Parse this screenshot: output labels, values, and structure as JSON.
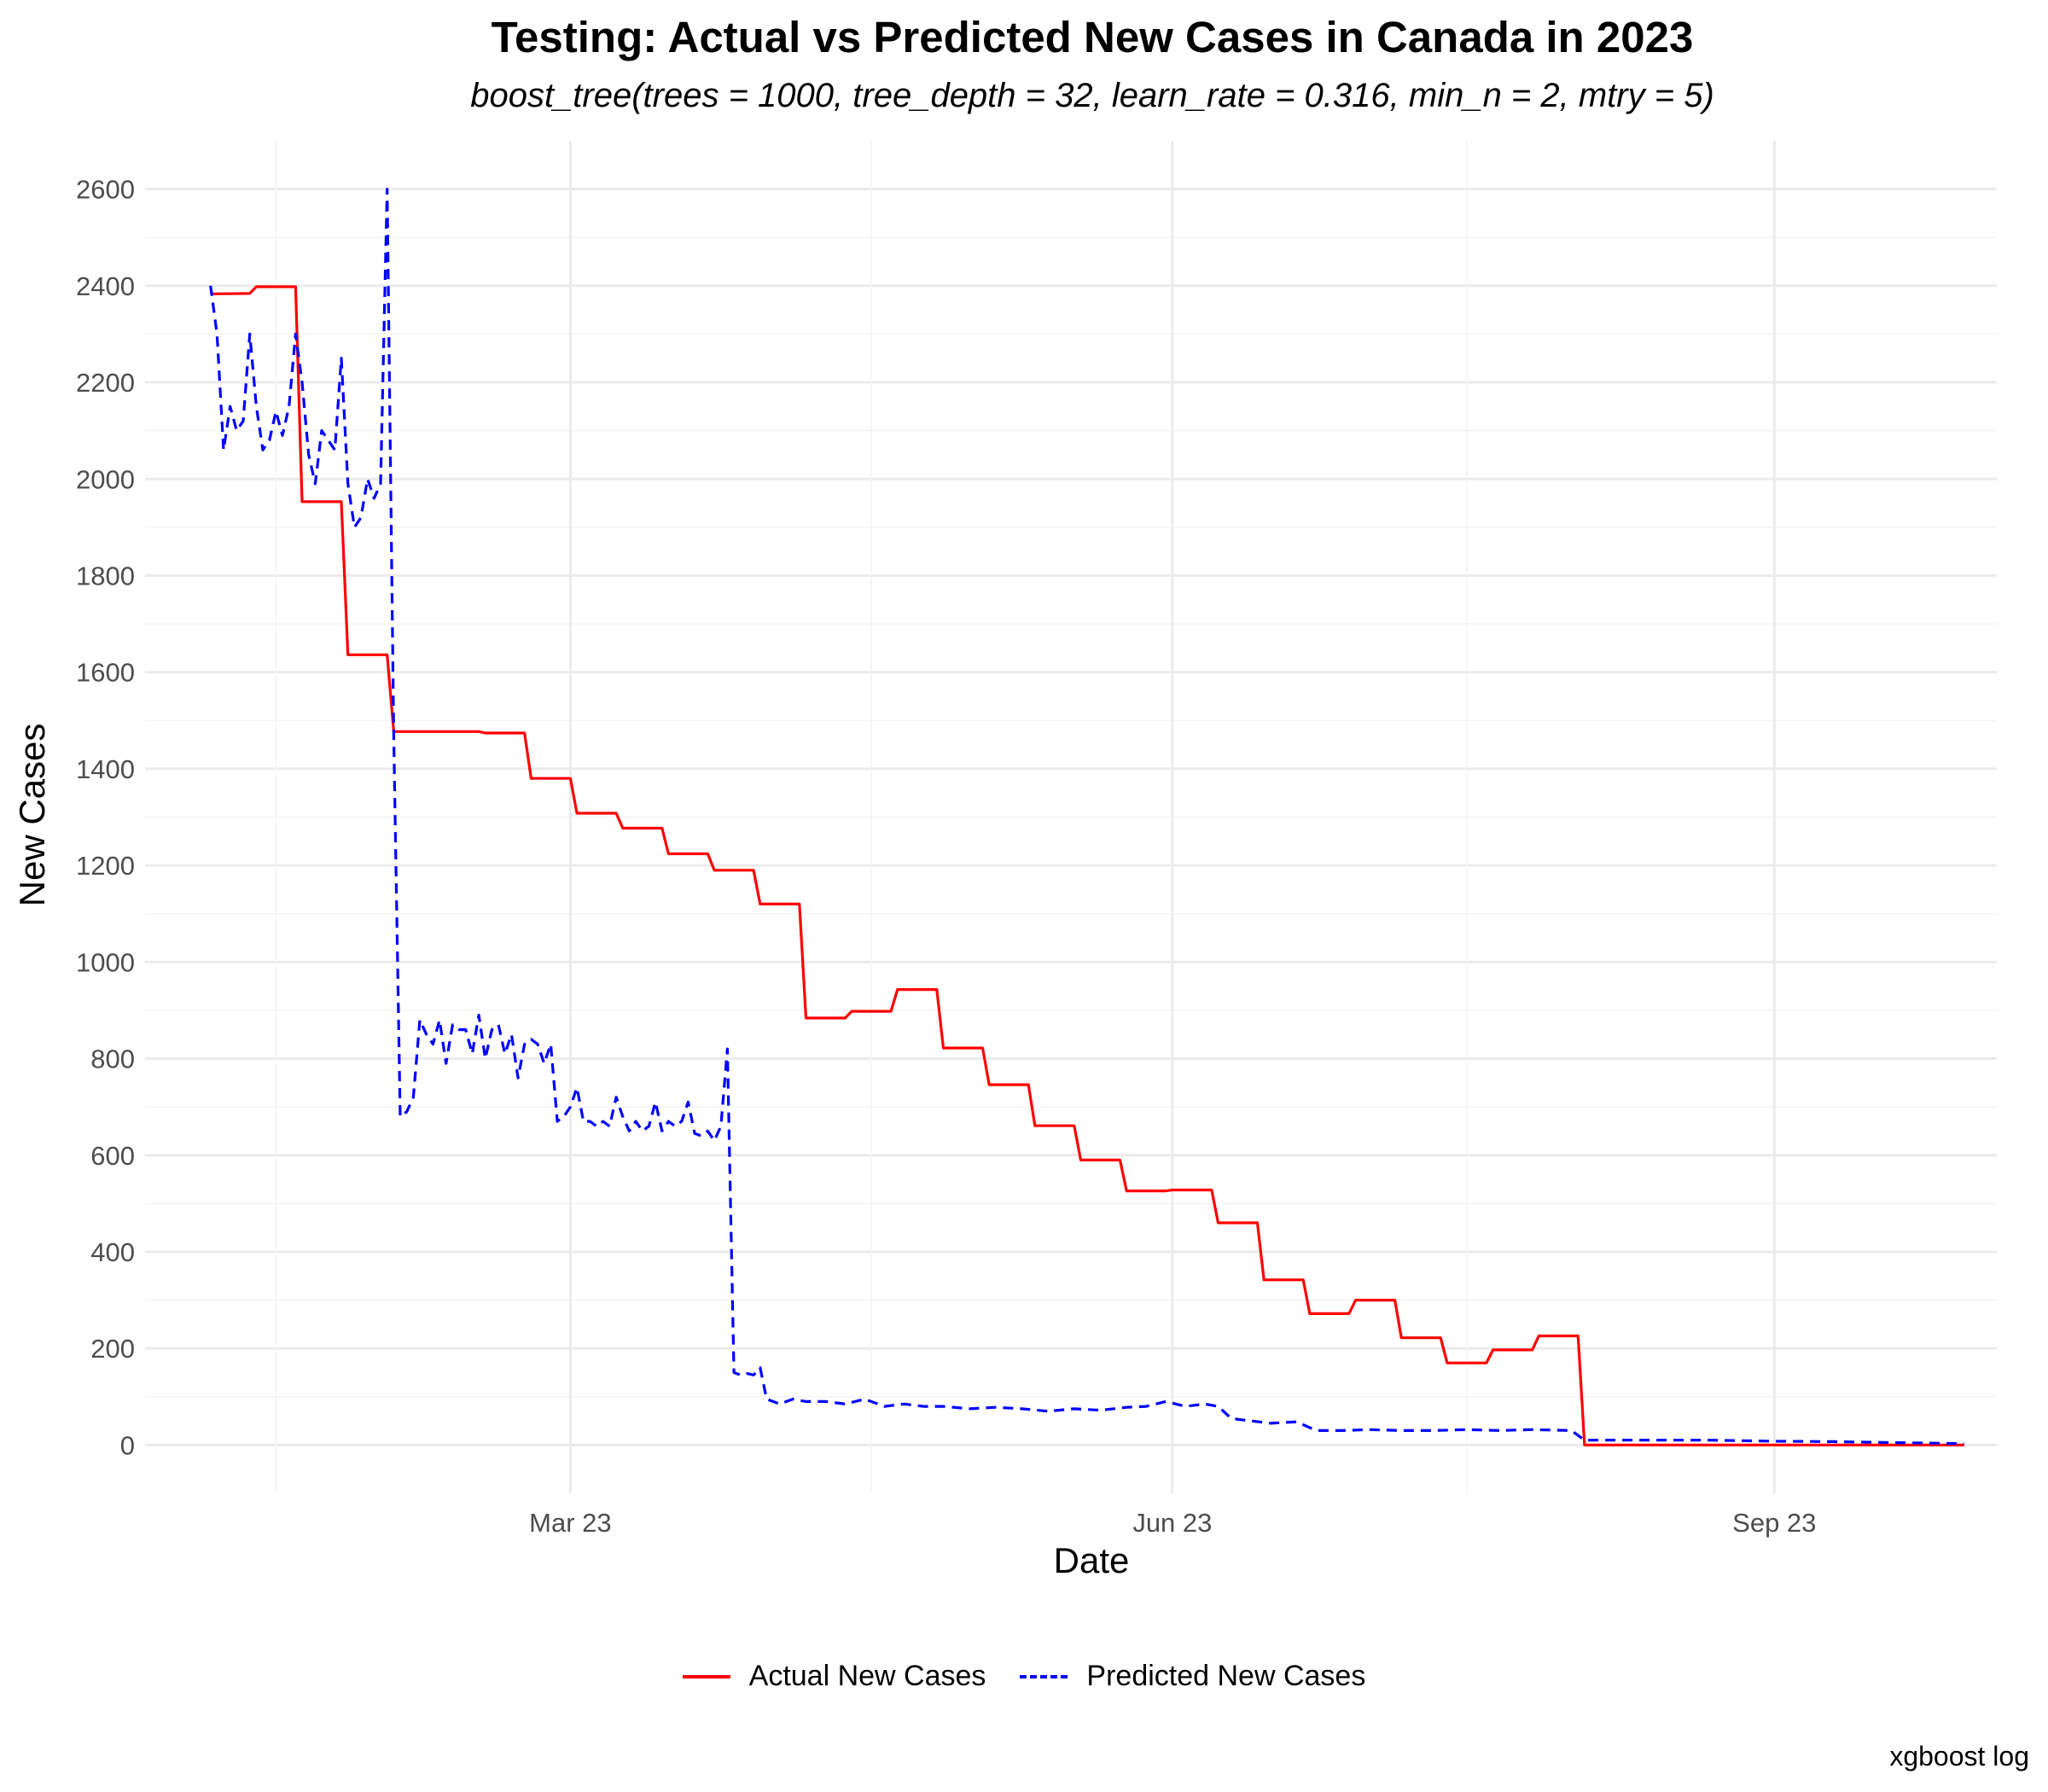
{
  "chart_data": {
    "type": "line",
    "title": "Testing: Actual vs Predicted New Cases in Canada in 2023",
    "subtitle": "boost_tree(trees = 1000, tree_depth = 32, learn_rate = 0.316, min_n = 2, mtry = 5)",
    "xlabel": "Date",
    "ylabel": "New Cases",
    "caption": "xgboost log",
    "x_ticks": [
      "Mar 23",
      "Jun 23",
      "Sep 23"
    ],
    "y_ticks": [
      0,
      200,
      400,
      600,
      800,
      1000,
      1200,
      1400,
      1600,
      1800,
      2000,
      2200,
      2400,
      2600
    ],
    "ylim": [
      -100,
      2700
    ],
    "xlim": [
      "2022-12-26",
      "2023-10-05"
    ],
    "grid": true,
    "legend_position": "bottom",
    "series": [
      {
        "name": "Actual New Cases",
        "color": "#ff0000",
        "dash": "solid",
        "points": [
          [
            "2023-01-05",
            2383
          ],
          [
            "2023-01-11",
            2384
          ],
          [
            "2023-01-12",
            2398
          ],
          [
            "2023-01-18",
            2398
          ],
          [
            "2023-01-19",
            1953
          ],
          [
            "2023-01-25",
            1953
          ],
          [
            "2023-01-26",
            1636
          ],
          [
            "2023-02-01",
            1636
          ],
          [
            "2023-02-02",
            1477
          ],
          [
            "2023-02-15",
            1477
          ],
          [
            "2023-02-16",
            1474
          ],
          [
            "2023-02-22",
            1474
          ],
          [
            "2023-02-23",
            1380
          ],
          [
            "2023-03-01",
            1380
          ],
          [
            "2023-03-02",
            1308
          ],
          [
            "2023-03-08",
            1308
          ],
          [
            "2023-03-09",
            1277
          ],
          [
            "2023-03-15",
            1277
          ],
          [
            "2023-03-16",
            1224
          ],
          [
            "2023-03-22",
            1224
          ],
          [
            "2023-03-23",
            1190
          ],
          [
            "2023-03-29",
            1190
          ],
          [
            "2023-03-30",
            1120
          ],
          [
            "2023-04-05",
            1120
          ],
          [
            "2023-04-06",
            884
          ],
          [
            "2023-04-12",
            884
          ],
          [
            "2023-04-13",
            898
          ],
          [
            "2023-04-19",
            898
          ],
          [
            "2023-04-20",
            943
          ],
          [
            "2023-04-26",
            943
          ],
          [
            "2023-04-27",
            822
          ],
          [
            "2023-05-03",
            822
          ],
          [
            "2023-05-04",
            746
          ],
          [
            "2023-05-10",
            746
          ],
          [
            "2023-05-11",
            661
          ],
          [
            "2023-05-17",
            661
          ],
          [
            "2023-05-18",
            590
          ],
          [
            "2023-05-24",
            590
          ],
          [
            "2023-05-25",
            526
          ],
          [
            "2023-05-31",
            526
          ],
          [
            "2023-06-01",
            528
          ],
          [
            "2023-06-07",
            528
          ],
          [
            "2023-06-08",
            460
          ],
          [
            "2023-06-14",
            460
          ],
          [
            "2023-06-15",
            342
          ],
          [
            "2023-06-21",
            342
          ],
          [
            "2023-06-22",
            272
          ],
          [
            "2023-06-28",
            272
          ],
          [
            "2023-06-29",
            300
          ],
          [
            "2023-07-05",
            300
          ],
          [
            "2023-07-06",
            222
          ],
          [
            "2023-07-12",
            222
          ],
          [
            "2023-07-13",
            170
          ],
          [
            "2023-07-19",
            170
          ],
          [
            "2023-07-20",
            197
          ],
          [
            "2023-07-26",
            197
          ],
          [
            "2023-07-27",
            226
          ],
          [
            "2023-08-02",
            226
          ],
          [
            "2023-08-03",
            0
          ],
          [
            "2023-09-30",
            0
          ]
        ]
      },
      {
        "name": "Predicted New Cases",
        "color": "#0000ff",
        "dash": "dashed",
        "points": [
          [
            "2023-01-05",
            2400
          ],
          [
            "2023-01-06",
            2300
          ],
          [
            "2023-01-07",
            2060
          ],
          [
            "2023-01-08",
            2150
          ],
          [
            "2023-01-09",
            2100
          ],
          [
            "2023-01-10",
            2120
          ],
          [
            "2023-01-11",
            2300
          ],
          [
            "2023-01-12",
            2150
          ],
          [
            "2023-01-13",
            2060
          ],
          [
            "2023-01-14",
            2080
          ],
          [
            "2023-01-15",
            2140
          ],
          [
            "2023-01-16",
            2090
          ],
          [
            "2023-01-17",
            2150
          ],
          [
            "2023-01-18",
            2300
          ],
          [
            "2023-01-19",
            2200
          ],
          [
            "2023-01-20",
            2050
          ],
          [
            "2023-01-21",
            1990
          ],
          [
            "2023-01-22",
            2100
          ],
          [
            "2023-01-23",
            2080
          ],
          [
            "2023-01-24",
            2060
          ],
          [
            "2023-01-25",
            2250
          ],
          [
            "2023-01-26",
            1990
          ],
          [
            "2023-01-27",
            1900
          ],
          [
            "2023-01-28",
            1920
          ],
          [
            "2023-01-29",
            2000
          ],
          [
            "2023-01-30",
            1960
          ],
          [
            "2023-01-31",
            1990
          ],
          [
            "2023-02-01",
            2600
          ],
          [
            "2023-02-02",
            1470
          ],
          [
            "2023-02-03",
            680
          ],
          [
            "2023-02-04",
            690
          ],
          [
            "2023-02-05",
            720
          ],
          [
            "2023-02-06",
            880
          ],
          [
            "2023-02-07",
            850
          ],
          [
            "2023-02-08",
            830
          ],
          [
            "2023-02-09",
            880
          ],
          [
            "2023-02-10",
            790
          ],
          [
            "2023-02-11",
            870
          ],
          [
            "2023-02-12",
            860
          ],
          [
            "2023-02-13",
            860
          ],
          [
            "2023-02-14",
            810
          ],
          [
            "2023-02-15",
            890
          ],
          [
            "2023-02-16",
            800
          ],
          [
            "2023-02-17",
            860
          ],
          [
            "2023-02-18",
            870
          ],
          [
            "2023-02-19",
            810
          ],
          [
            "2023-02-20",
            850
          ],
          [
            "2023-02-21",
            760
          ],
          [
            "2023-02-22",
            830
          ],
          [
            "2023-02-23",
            840
          ],
          [
            "2023-02-24",
            830
          ],
          [
            "2023-02-25",
            790
          ],
          [
            "2023-02-26",
            830
          ],
          [
            "2023-02-27",
            670
          ],
          [
            "2023-02-28",
            680
          ],
          [
            "2023-03-01",
            700
          ],
          [
            "2023-03-02",
            740
          ],
          [
            "2023-03-03",
            670
          ],
          [
            "2023-03-04",
            670
          ],
          [
            "2023-03-05",
            660
          ],
          [
            "2023-03-06",
            670
          ],
          [
            "2023-03-07",
            660
          ],
          [
            "2023-03-08",
            720
          ],
          [
            "2023-03-09",
            680
          ],
          [
            "2023-03-10",
            650
          ],
          [
            "2023-03-11",
            670
          ],
          [
            "2023-03-12",
            650
          ],
          [
            "2023-03-13",
            660
          ],
          [
            "2023-03-14",
            710
          ],
          [
            "2023-03-15",
            650
          ],
          [
            "2023-03-16",
            670
          ],
          [
            "2023-03-17",
            660
          ],
          [
            "2023-03-18",
            670
          ],
          [
            "2023-03-19",
            710
          ],
          [
            "2023-03-20",
            645
          ],
          [
            "2023-03-21",
            640
          ],
          [
            "2023-03-22",
            650
          ],
          [
            "2023-03-23",
            630
          ],
          [
            "2023-03-24",
            660
          ],
          [
            "2023-03-25",
            820
          ],
          [
            "2023-03-26",
            150
          ],
          [
            "2023-03-27",
            145
          ],
          [
            "2023-03-28",
            148
          ],
          [
            "2023-03-29",
            145
          ],
          [
            "2023-03-30",
            160
          ],
          [
            "2023-03-31",
            95
          ],
          [
            "2023-04-02",
            85
          ],
          [
            "2023-04-04",
            95
          ],
          [
            "2023-04-06",
            90
          ],
          [
            "2023-04-09",
            90
          ],
          [
            "2023-04-12",
            85
          ],
          [
            "2023-04-15",
            95
          ],
          [
            "2023-04-18",
            80
          ],
          [
            "2023-04-21",
            85
          ],
          [
            "2023-04-24",
            80
          ],
          [
            "2023-04-27",
            80
          ],
          [
            "2023-05-01",
            75
          ],
          [
            "2023-05-05",
            78
          ],
          [
            "2023-05-09",
            75
          ],
          [
            "2023-05-13",
            70
          ],
          [
            "2023-05-17",
            75
          ],
          [
            "2023-05-21",
            72
          ],
          [
            "2023-05-25",
            78
          ],
          [
            "2023-05-28",
            80
          ],
          [
            "2023-05-31",
            90
          ],
          [
            "2023-06-03",
            80
          ],
          [
            "2023-06-06",
            85
          ],
          [
            "2023-06-08",
            80
          ],
          [
            "2023-06-10",
            55
          ],
          [
            "2023-06-13",
            50
          ],
          [
            "2023-06-16",
            45
          ],
          [
            "2023-06-20",
            48
          ],
          [
            "2023-06-23",
            30
          ],
          [
            "2023-06-27",
            30
          ],
          [
            "2023-07-01",
            32
          ],
          [
            "2023-07-06",
            30
          ],
          [
            "2023-07-11",
            30
          ],
          [
            "2023-07-16",
            32
          ],
          [
            "2023-07-21",
            30
          ],
          [
            "2023-07-26",
            32
          ],
          [
            "2023-08-01",
            30
          ],
          [
            "2023-08-03",
            10
          ],
          [
            "2023-08-12",
            10
          ],
          [
            "2023-08-22",
            10
          ],
          [
            "2023-09-01",
            8
          ],
          [
            "2023-09-10",
            7
          ],
          [
            "2023-09-20",
            5
          ],
          [
            "2023-09-30",
            3
          ]
        ]
      }
    ]
  }
}
